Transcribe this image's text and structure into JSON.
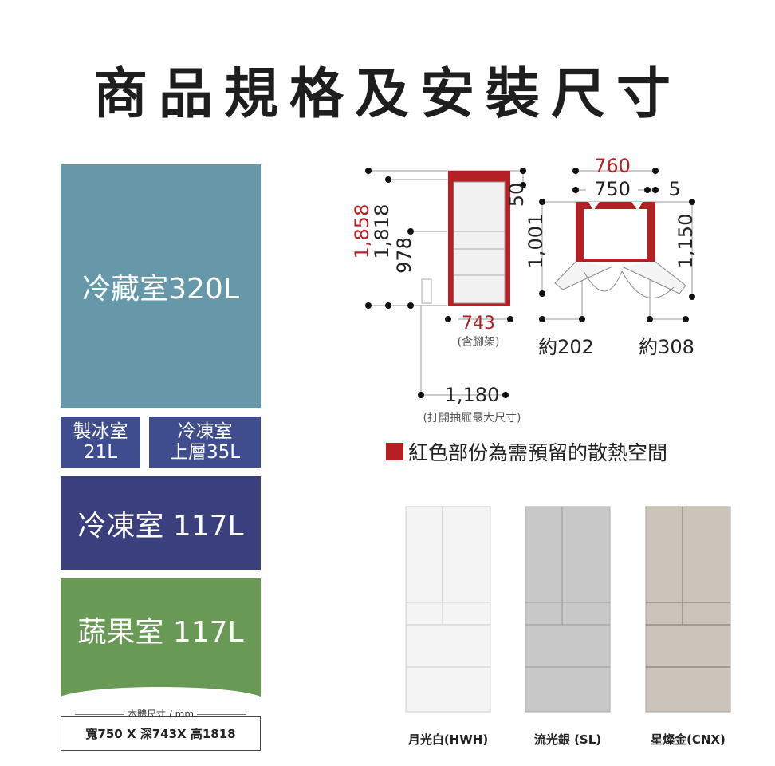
{
  "title": "商品規格及安裝尺寸",
  "capacities": {
    "fridge": "冷藏室320L",
    "ice_line1": "製冰室",
    "ice_line2": "21L",
    "upper_freezer_line1": "冷凍室",
    "upper_freezer_line2": "上層35L",
    "freezer": "冷凍室 117L",
    "vegetable": "蔬果室 117L"
  },
  "body_size": {
    "label": "本體尺寸 / mm",
    "value": "寬750 X 深743X 高1818"
  },
  "dimensions": {
    "total_height": "1,858",
    "body_height": "1,818",
    "height_978": "978",
    "top_clearance": "50",
    "depth": "743",
    "depth_note": "(含腳架)",
    "drawer_open": "1,180",
    "drawer_note": "(打開抽屜最大尺寸)",
    "width_total": "760",
    "width_body": "750",
    "side_gap": "5",
    "door_open_depth": "1,001",
    "door_open_depth_2": "1,150",
    "left_door": "約202",
    "right_door": "約308"
  },
  "legend": "紅色部份為需預留的散熱空間",
  "colors": {
    "fridge": "#6798aa",
    "ice": "#3f4c8d",
    "freezer": "#3a3f7e",
    "vegetable": "#699a55",
    "clearance_red": "#b52024"
  },
  "models": [
    {
      "name": "月光白(HWH)"
    },
    {
      "name": "流光銀 (SL)"
    },
    {
      "name": "星燦金(CNX)"
    }
  ]
}
